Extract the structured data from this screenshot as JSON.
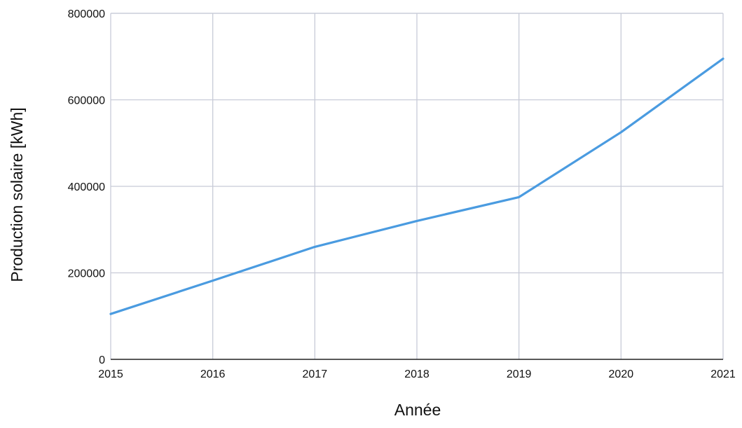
{
  "chart_data": {
    "type": "line",
    "title": "",
    "xlabel": "Année",
    "ylabel": "Production solaire [kWh]",
    "x": [
      2015,
      2016,
      2017,
      2018,
      2019,
      2020,
      2021
    ],
    "x_tick_labels": [
      "2015",
      "2016",
      "2017",
      "2018",
      "2019",
      "2020",
      "2021"
    ],
    "y_ticks": [
      0,
      200000,
      400000,
      600000,
      800000
    ],
    "y_tick_labels": [
      "0",
      "200000",
      "400000",
      "600000",
      "800000"
    ],
    "xlim": [
      2015,
      2021
    ],
    "ylim": [
      0,
      800000
    ],
    "grid": true,
    "legend": "none",
    "series": [
      {
        "values": [
          105000,
          182000,
          260000,
          320000,
          375000,
          525000,
          695000
        ],
        "color": "#4a9be0"
      }
    ],
    "colors": {
      "grid": "#c8cbd8",
      "axis": "#222222",
      "line": "#4a9be0"
    }
  }
}
